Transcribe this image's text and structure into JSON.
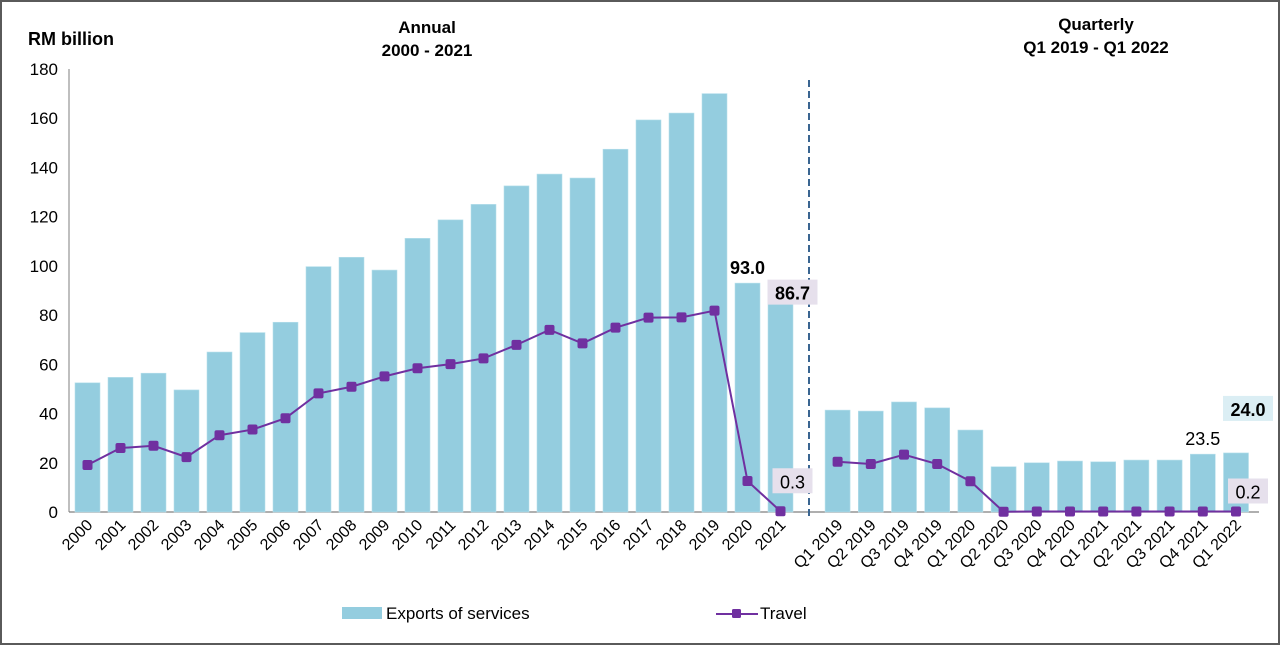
{
  "chart_data": {
    "type": "bar",
    "unit_label": "RM billion",
    "ylim": [
      0,
      180
    ],
    "yticks": [
      0,
      20,
      40,
      60,
      80,
      100,
      120,
      140,
      160,
      180
    ],
    "grid": false,
    "legend_position": "bottom",
    "colors": {
      "exports": "#94cddf",
      "travel": "#7030a0",
      "divider": "#3a6591",
      "label_bg_travel": "#e6e0ec",
      "label_bg_exports": "#dbeef4"
    },
    "series_names": [
      "Exports of services",
      "Travel"
    ],
    "panels": [
      {
        "title_line1": "Annual",
        "title_line2": "2000 - 2021",
        "categories": [
          "2000",
          "2001",
          "2002",
          "2003",
          "2004",
          "2005",
          "2006",
          "2007",
          "2008",
          "2009",
          "2010",
          "2011",
          "2012",
          "2013",
          "2014",
          "2015",
          "2016",
          "2017",
          "2018",
          "2019",
          "2020",
          "2021"
        ],
        "series": [
          {
            "name": "Exports of services",
            "kind": "bar",
            "values": [
              52.5,
              54.7,
              56.4,
              49.6,
              65.0,
              72.9,
              77.1,
              99.7,
              103.5,
              98.3,
              111.2,
              118.7,
              125.0,
              132.5,
              137.3,
              135.7,
              147.4,
              159.3,
              162.1,
              170.0,
              93.0,
              86.7
            ]
          },
          {
            "name": "Travel",
            "kind": "line",
            "values": [
              19.1,
              26.0,
              26.9,
              22.3,
              31.2,
              33.5,
              38.1,
              48.2,
              50.9,
              55.1,
              58.4,
              60.1,
              62.4,
              67.9,
              74.0,
              68.5,
              74.9,
              79.0,
              79.1,
              81.8,
              12.6,
              0.3
            ]
          }
        ],
        "annotations": [
          {
            "text": "93.0",
            "series": "Exports of services",
            "index": 20,
            "bold": true,
            "boxed": false
          },
          {
            "text": "86.7",
            "series": "Exports of services",
            "index": 21,
            "bold": true,
            "boxed": true
          },
          {
            "text": "0.3",
            "series": "Travel",
            "index": 21,
            "bold": false,
            "boxed": true
          }
        ]
      },
      {
        "title_line1": "Quarterly",
        "title_line2": "Q1 2019 - Q1 2022",
        "categories": [
          "Q1 2019",
          "Q2 2019",
          "Q3 2019",
          "Q4 2019",
          "Q1 2020",
          "Q2 2020",
          "Q3 2020",
          "Q4 2020",
          "Q1 2021",
          "Q2 2021",
          "Q3 2021",
          "Q4 2021",
          "Q1 2022"
        ],
        "series": [
          {
            "name": "Exports of services",
            "kind": "bar",
            "values": [
              41.4,
              41.0,
              44.7,
              42.3,
              33.3,
              18.4,
              20.0,
              20.7,
              20.4,
              21.1,
              21.1,
              23.5,
              24.0
            ]
          },
          {
            "name": "Travel",
            "kind": "line",
            "values": [
              20.4,
              19.5,
              23.3,
              19.5,
              12.5,
              0.1,
              0.2,
              0.2,
              0.2,
              0.2,
              0.2,
              0.2,
              0.2
            ]
          }
        ],
        "annotations": [
          {
            "text": "23.5",
            "series": "Exports of services",
            "index": 11,
            "bold": false,
            "boxed": false
          },
          {
            "text": "24.0",
            "series": "Exports of services",
            "index": 12,
            "bold": true,
            "boxed": true
          },
          {
            "text": "0.2",
            "series": "Travel",
            "index": 12,
            "bold": false,
            "boxed": true
          }
        ]
      }
    ]
  }
}
